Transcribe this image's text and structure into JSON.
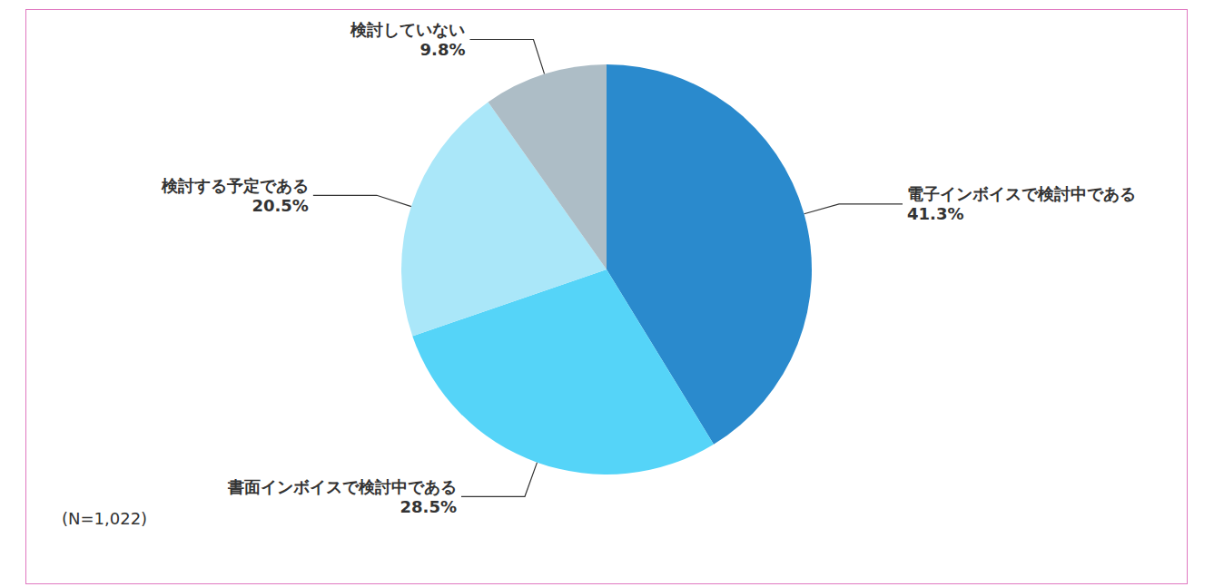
{
  "chart_data": {
    "type": "pie",
    "categories": [
      "電子インボイスで検討中である",
      "書面インボイスで検討中である",
      "検討する予定である",
      "検討していない"
    ],
    "values": [
      41.3,
      28.5,
      20.5,
      9.8
    ],
    "value_labels": [
      "41.3%",
      "28.5%",
      "20.5%",
      "9.8%"
    ],
    "colors": [
      "#2a8acd",
      "#55d4f8",
      "#aae7f9",
      "#adbdc6"
    ],
    "annotation": "(N=1,022)"
  }
}
